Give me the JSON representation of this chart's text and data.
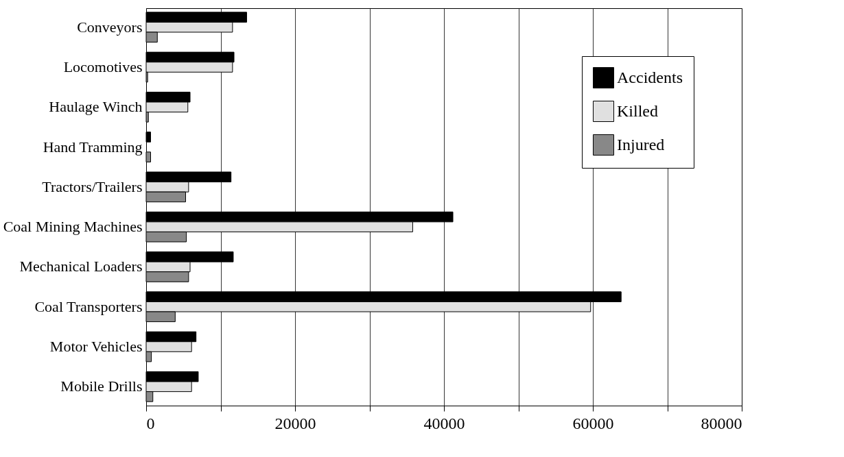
{
  "chart_data": {
    "type": "bar",
    "orientation": "horizontal",
    "categories": [
      "Conveyors",
      "Locomotives",
      "Haulage Winch",
      "Hand Tramming",
      "Tractors/Trailers",
      "Coal Mining Machines",
      "Mechanical Loaders",
      "Coal Transporters",
      "Motor Vehicles",
      "Mobile Drills"
    ],
    "series": [
      {
        "name": "Accidents",
        "color": "#000000",
        "values": [
          13500,
          11800,
          5900,
          600,
          11400,
          41200,
          11700,
          63800,
          6700,
          7000
        ]
      },
      {
        "name": "Killed",
        "color": "#e0e0e0",
        "values": [
          11600,
          11600,
          5600,
          null,
          5700,
          35800,
          5900,
          59700,
          6100,
          6100
        ]
      },
      {
        "name": "Injured",
        "color": "#888888",
        "values": [
          1500,
          200,
          300,
          600,
          5300,
          5400,
          5700,
          3900,
          700,
          900
        ]
      }
    ],
    "xlim": [
      0,
      80000
    ],
    "xticks": [
      0,
      {
        "value": 10000,
        "label": null
      },
      20000,
      {
        "value": 30000,
        "label": null
      },
      40000,
      {
        "value": 50000,
        "label": null
      },
      60000,
      {
        "value": 70000,
        "label": null
      },
      80000
    ],
    "grid": "x",
    "legend": "top right"
  }
}
